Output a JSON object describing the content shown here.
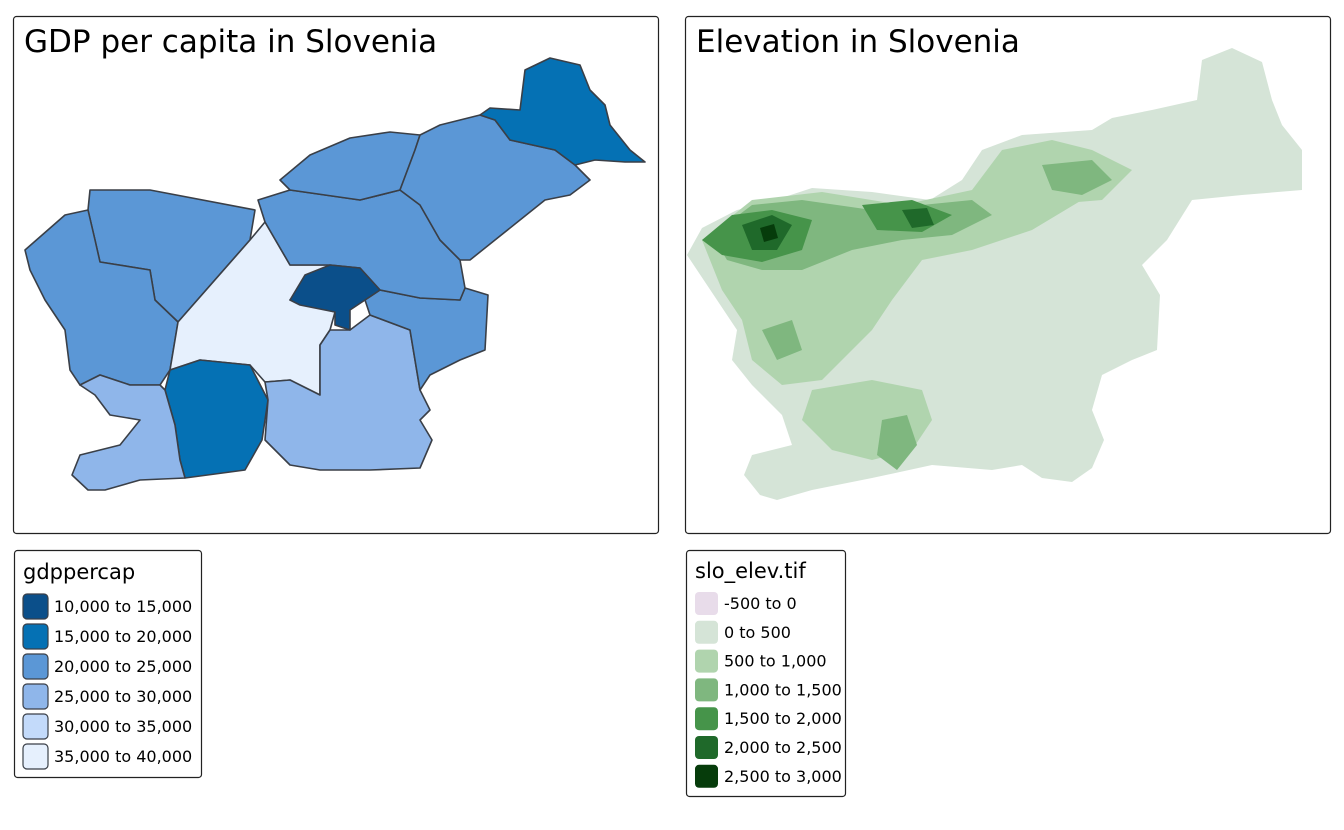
{
  "panels": [
    {
      "title": "GDP per capita in Slovenia",
      "legend": {
        "title": "gdppercap",
        "items": [
          {
            "label": "10,000 to 15,000",
            "color": "#0b4f8a"
          },
          {
            "label": "15,000 to 20,000",
            "color": "#0571b4"
          },
          {
            "label": "20,000 to 25,000",
            "color": "#5b97d6"
          },
          {
            "label": "25,000 to 30,000",
            "color": "#8fb6ea"
          },
          {
            "label": "30,000 to 35,000",
            "color": "#c3dafa"
          },
          {
            "label": "35,000 to 40,000",
            "color": "#e6f0fd"
          }
        ]
      }
    },
    {
      "title": "Elevation in Slovenia",
      "legend": {
        "title": "slo_elev.tif",
        "items": [
          {
            "label": "-500 to 0",
            "color": "#e8dcea"
          },
          {
            "label": "0 to 500",
            "color": "#d5e4d7"
          },
          {
            "label": "500 to 1,000",
            "color": "#b0d4ae"
          },
          {
            "label": "1,000 to 1,500",
            "color": "#7fb77f"
          },
          {
            "label": "1,500 to 2,000",
            "color": "#46944a"
          },
          {
            "label": "2,000 to 2,500",
            "color": "#1f692a"
          },
          {
            "label": "2,500 to 3,000",
            "color": "#063c0b"
          }
        ]
      }
    }
  ]
}
